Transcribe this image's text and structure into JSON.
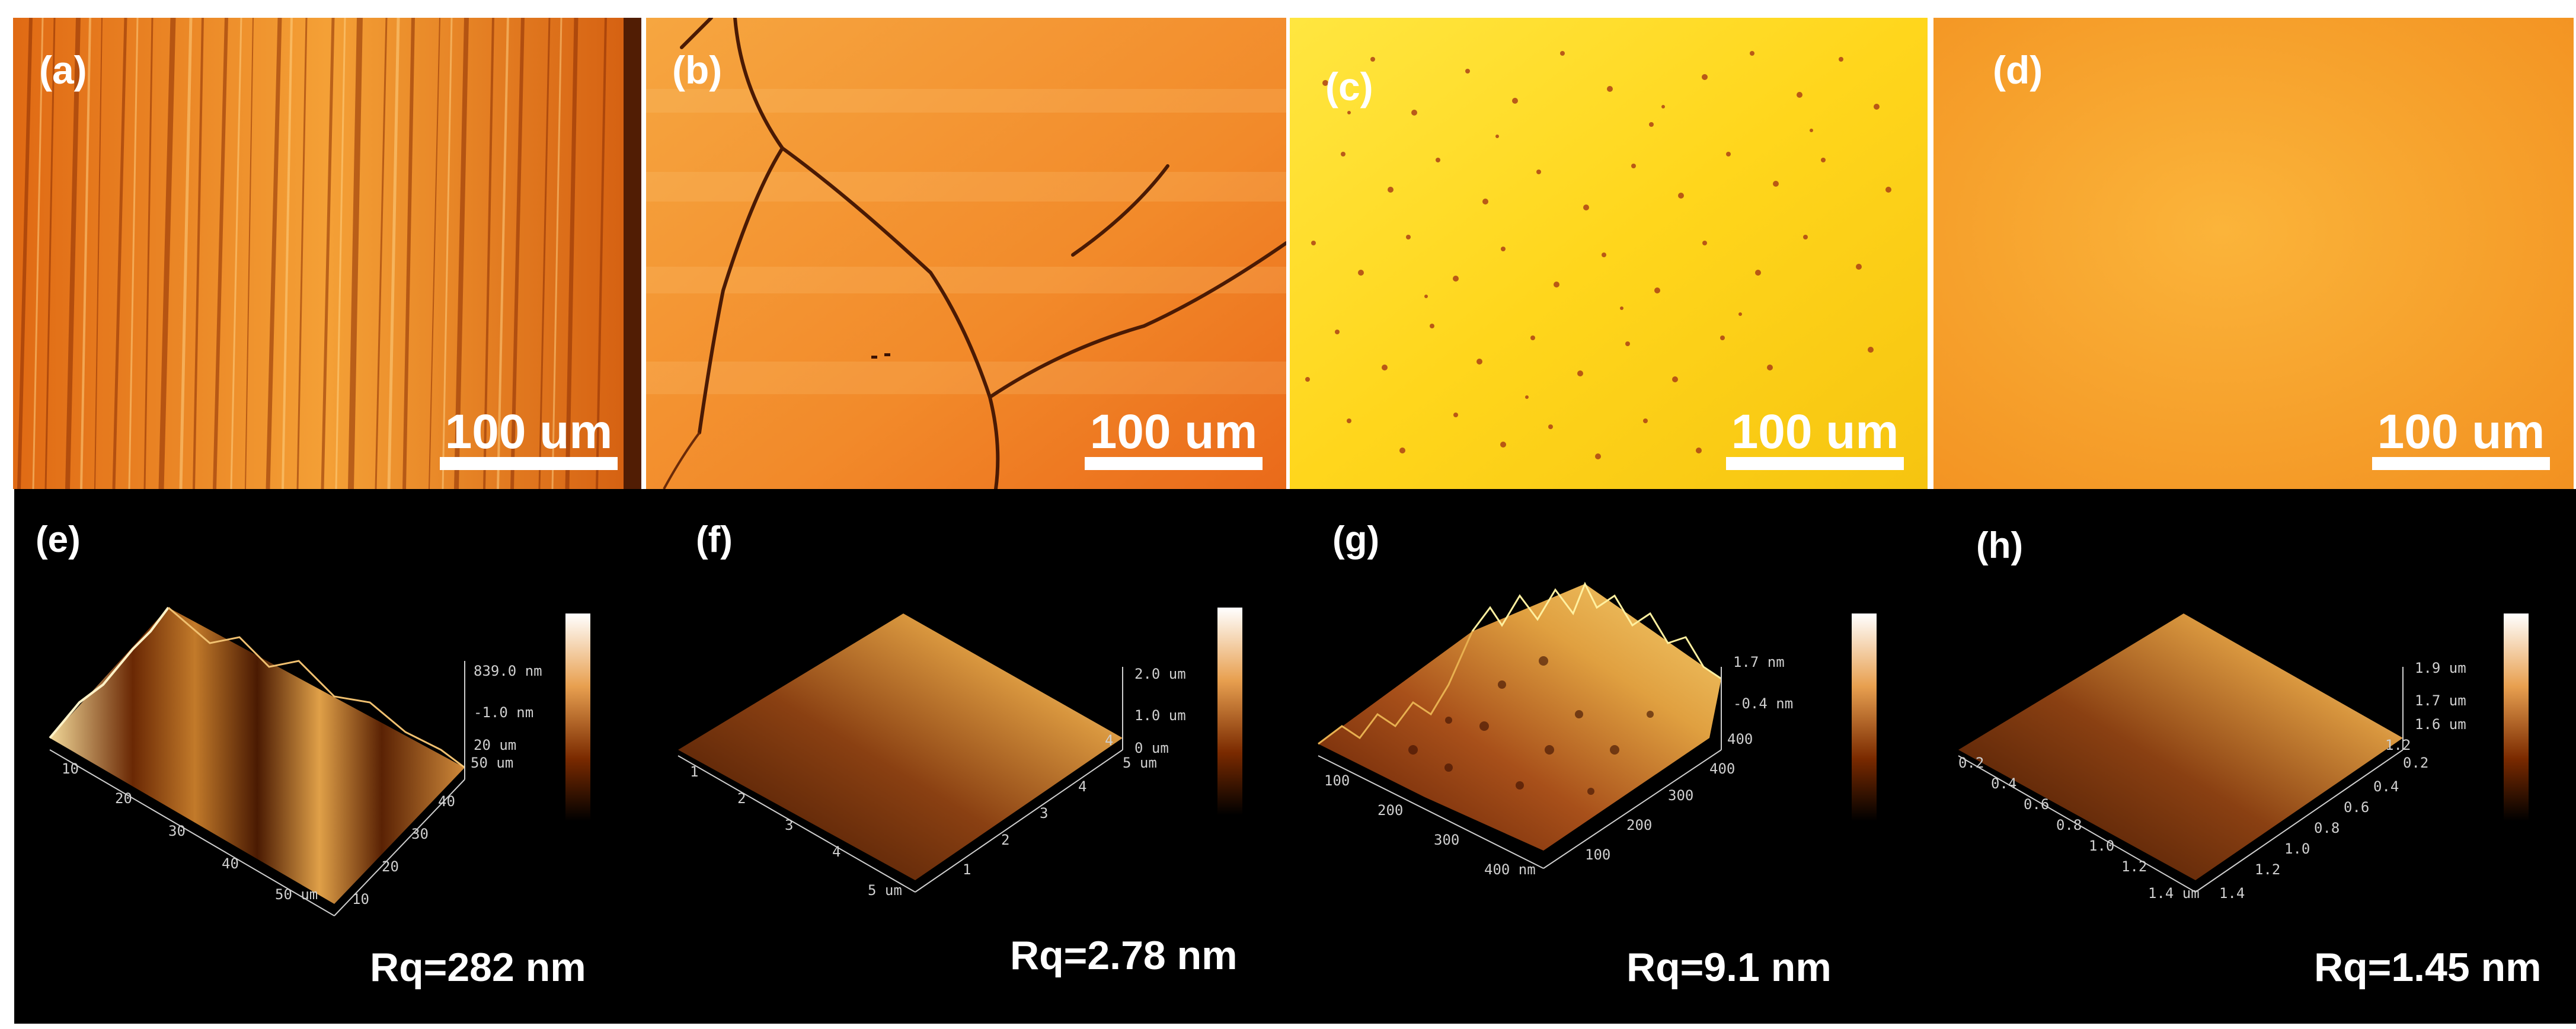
{
  "figure": {
    "optical_panels": [
      {
        "label": "(a)",
        "scale_bar": "100 um"
      },
      {
        "label": "(b)",
        "scale_bar": "100 um"
      },
      {
        "label": "(c)",
        "scale_bar": "100 um"
      },
      {
        "label": "(d)",
        "scale_bar": "100 um"
      }
    ],
    "afm_panels": [
      {
        "label": "(e)",
        "rq": "Rq=282 nm",
        "z_ticks": [
          "839.0 nm",
          "-1.0 nm",
          "20 um"
        ],
        "x_ticks": [
          "10",
          "20",
          "30",
          "40",
          "50 um"
        ],
        "y_ticks": [
          "10",
          "20",
          "30",
          "40",
          "50 um"
        ]
      },
      {
        "label": "(f)",
        "rq": "Rq=2.78 nm",
        "z_ticks": [
          "2.0 um",
          "1.0 um",
          "0 um"
        ],
        "x_ticks": [
          "1",
          "2",
          "3",
          "4",
          "5 um"
        ],
        "y_ticks": [
          "1",
          "2",
          "3",
          "4",
          "5 um"
        ],
        "side_tick": "4"
      },
      {
        "label": "(g)",
        "rq": "Rq=9.1 nm",
        "z_ticks": [
          "1.7 nm",
          "-0.4 nm",
          "400"
        ],
        "x_ticks": [
          "100",
          "200",
          "300",
          "400 nm"
        ],
        "y_ticks": [
          "100",
          "200",
          "300",
          "400"
        ]
      },
      {
        "label": "(h)",
        "rq": "Rq=1.45 nm",
        "z_ticks": [
          "1.9 um",
          "1.7 um",
          "1.6 um",
          "1.2"
        ],
        "x_ticks": [
          "0.2",
          "0.4",
          "0.6",
          "0.8",
          "1.0",
          "1.2",
          "1.4 um"
        ],
        "y_ticks": [
          "0.2",
          "0.4",
          "0.6",
          "0.8",
          "1.0",
          "1.2",
          "1.4"
        ]
      }
    ],
    "colors": {
      "copper_dark": "#7a2a00",
      "copper_mid": "#d0661a",
      "copper_light": "#ffe6b0",
      "photo_a": "#e8781e",
      "photo_b": "#f08a2a",
      "photo_c": "#ffd21e",
      "photo_d": "#f5a024"
    }
  }
}
